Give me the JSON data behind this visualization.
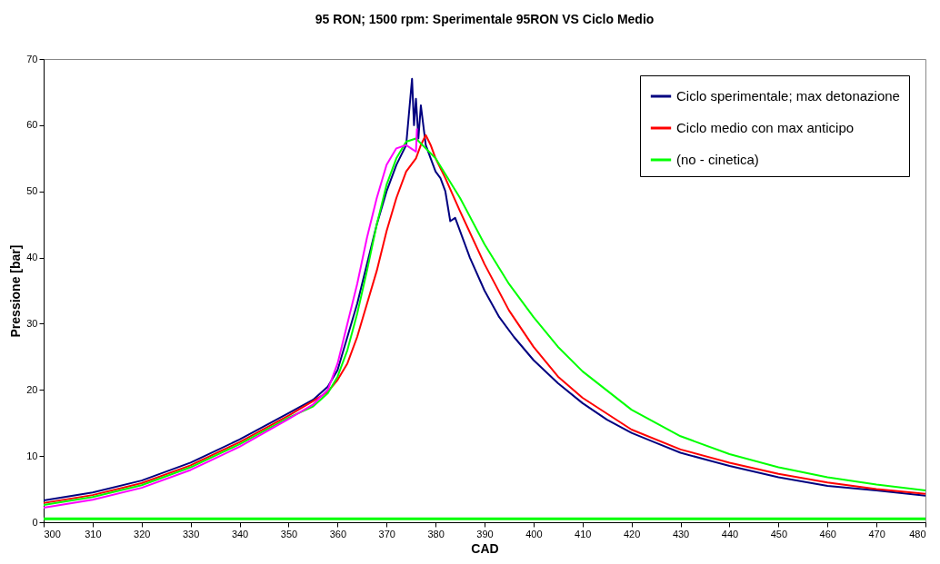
{
  "chart_data": {
    "type": "line",
    "title": "95 RON; 1500 rpm: Sperimentale 95RON VS Ciclo Medio",
    "xlabel": "CAD",
    "ylabel": "Pressione [bar]",
    "xlim": [
      300,
      480
    ],
    "xticks": [
      300,
      310,
      320,
      330,
      340,
      350,
      360,
      370,
      380,
      390,
      400,
      410,
      420,
      430,
      440,
      450,
      460,
      470,
      480
    ],
    "ylim": [
      0,
      70
    ],
    "yticks": [
      0,
      10,
      20,
      30,
      40,
      50,
      60,
      70
    ],
    "grid": false,
    "legend": "top right",
    "marker": "none",
    "line_style": "solid",
    "ref_lines": [
      {
        "axis": "y",
        "value": 0.5,
        "color": "#00ff00"
      }
    ],
    "series": [
      {
        "name": "Ciclo sperimentale; max detonazione",
        "color": "#000080",
        "x": [
          300,
          310,
          320,
          330,
          340,
          350,
          355,
          358,
          360,
          362,
          364,
          366,
          368,
          370,
          372,
          373,
          374,
          374.6,
          375.2,
          375.6,
          376,
          376.5,
          377,
          377.5,
          378,
          379,
          380,
          381,
          382,
          383,
          384,
          385,
          387,
          390,
          393,
          396,
          400,
          405,
          410,
          415,
          420,
          425,
          430,
          440,
          450,
          460,
          470,
          480
        ],
        "values": [
          3.3,
          4.5,
          6.3,
          9.0,
          12.5,
          16.5,
          18.5,
          20.5,
          23,
          28,
          33,
          39,
          45,
          50,
          54,
          55.5,
          57,
          62,
          67,
          60,
          64,
          58,
          63,
          60,
          57,
          55,
          53,
          52,
          50,
          45.5,
          46,
          44,
          40,
          35,
          31,
          28,
          24.5,
          21,
          18,
          15.5,
          13.5,
          12,
          10.5,
          8.5,
          6.8,
          5.5,
          4.8,
          4.0
        ]
      },
      {
        "name": "Ciclo medio con max anticipo",
        "color": "#ff0000",
        "x": [
          300,
          310,
          320,
          330,
          340,
          350,
          355,
          358,
          360,
          362,
          364,
          366,
          368,
          370,
          372,
          374,
          376,
          377,
          378,
          379,
          380,
          382,
          385,
          390,
          395,
          400,
          405,
          410,
          420,
          430,
          440,
          450,
          460,
          470,
          480
        ],
        "values": [
          2.9,
          4.1,
          5.9,
          8.6,
          12.1,
          16.1,
          18.3,
          19.7,
          21.5,
          24,
          28,
          33,
          38,
          44,
          49,
          53,
          55,
          57,
          58.5,
          57,
          55,
          52,
          47,
          39,
          32,
          26.5,
          22,
          18.8,
          14,
          11,
          9,
          7.3,
          6,
          5,
          4.3
        ]
      },
      {
        "name": "(no - cinetica)",
        "color": "#00ff00",
        "x": [
          300,
          310,
          320,
          330,
          340,
          350,
          355,
          358,
          360,
          362,
          364,
          366,
          368,
          370,
          372,
          374,
          376,
          378,
          380,
          385,
          390,
          395,
          400,
          405,
          410,
          420,
          430,
          440,
          450,
          460,
          470,
          480
        ],
        "values": [
          2.6,
          3.8,
          5.6,
          8.3,
          11.8,
          15.8,
          17.5,
          19.5,
          22,
          26,
          31.5,
          38,
          45,
          51,
          55,
          57.5,
          58,
          56.5,
          55,
          49,
          42,
          36,
          31,
          26.5,
          22.8,
          17,
          13,
          10.3,
          8.3,
          6.8,
          5.7,
          4.8
        ]
      },
      {
        "color": "#ff00ff",
        "x": [
          300,
          310,
          320,
          330,
          340,
          350,
          355,
          358,
          360,
          362,
          364,
          366,
          368,
          370,
          372,
          374,
          375,
          376,
          376.2
        ],
        "values": [
          2.2,
          3.4,
          5.2,
          7.9,
          11.4,
          15.6,
          17.8,
          20.0,
          24,
          30,
          36,
          43,
          49,
          54,
          56.5,
          57,
          56.5,
          56,
          59.5
        ]
      }
    ]
  }
}
